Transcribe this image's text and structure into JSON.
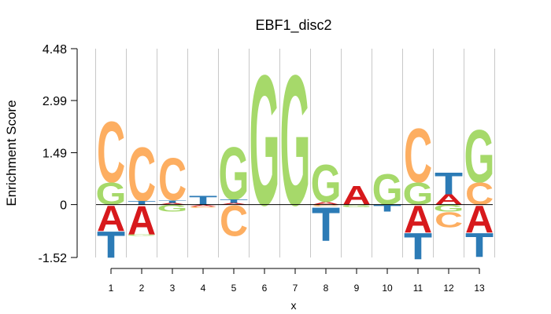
{
  "chart_data": {
    "type": "sequence-logo",
    "title": "EBF1_disc2",
    "xlabel": "x",
    "ylabel": "Enrichment Score",
    "yticks": [
      "4.48",
      "2.99",
      "1.49",
      "0",
      "-1.52"
    ],
    "ylim": [
      -1.52,
      4.48
    ],
    "grid": true,
    "colors": {
      "A": "#d7191c",
      "C": "#fdae61",
      "G": "#a6d96a",
      "T": "#2c7bb6"
    },
    "positions": [
      {
        "x": "1",
        "stack": [
          {
            "base": "C",
            "value": 1.8
          },
          {
            "base": "G",
            "value": 0.65
          }
        ],
        "negative": [
          {
            "base": "A",
            "value": 0.75
          },
          {
            "base": "T",
            "value": 0.78
          }
        ]
      },
      {
        "x": "2",
        "stack": [
          {
            "base": "C",
            "value": 1.6
          },
          {
            "base": "T",
            "value": 0.1
          }
        ],
        "negative": [
          {
            "base": "A",
            "value": 0.85
          },
          {
            "base": "G",
            "value": 0.05
          }
        ]
      },
      {
        "x": "3",
        "stack": [
          {
            "base": "C",
            "value": 1.25
          },
          {
            "base": "T",
            "value": 0.08
          },
          {
            "base": "A",
            "value": 0.05
          }
        ],
        "negative": [
          {
            "base": "G",
            "value": 0.2
          }
        ]
      },
      {
        "x": "4",
        "stack": [
          {
            "base": "T",
            "value": 0.25
          }
        ],
        "negative": [
          {
            "base": "A",
            "value": 0.05
          },
          {
            "base": "C",
            "value": 0.05
          }
        ]
      },
      {
        "x": "5",
        "stack": [
          {
            "base": "G",
            "value": 1.55
          },
          {
            "base": "T",
            "value": 0.1
          },
          {
            "base": "A",
            "value": 0.05
          }
        ],
        "negative": [
          {
            "base": "C",
            "value": 0.9
          }
        ]
      },
      {
        "x": "6",
        "stack": [
          {
            "base": "G",
            "value": 3.85
          }
        ],
        "negative": []
      },
      {
        "x": "7",
        "stack": [
          {
            "base": "G",
            "value": 3.85
          }
        ],
        "negative": []
      },
      {
        "x": "8",
        "stack": [
          {
            "base": "G",
            "value": 1.1
          },
          {
            "base": "A",
            "value": 0.08
          }
        ],
        "negative": [
          {
            "base": "C",
            "value": 0.05
          },
          {
            "base": "T",
            "value": 1.0
          }
        ]
      },
      {
        "x": "9",
        "stack": [
          {
            "base": "A",
            "value": 0.55
          }
        ],
        "negative": [
          {
            "base": "G",
            "value": 0.08
          }
        ]
      },
      {
        "x": "10",
        "stack": [
          {
            "base": "G",
            "value": 0.9
          }
        ],
        "negative": [
          {
            "base": "T",
            "value": 0.2
          }
        ]
      },
      {
        "x": "11",
        "stack": [
          {
            "base": "C",
            "value": 1.6
          },
          {
            "base": "G",
            "value": 0.65
          }
        ],
        "negative": [
          {
            "base": "A",
            "value": 0.8
          },
          {
            "base": "T",
            "value": 0.78
          }
        ]
      },
      {
        "x": "12",
        "stack": [
          {
            "base": "T",
            "value": 0.65
          },
          {
            "base": "A",
            "value": 0.3
          }
        ],
        "negative": [
          {
            "base": "G",
            "value": 0.2
          },
          {
            "base": "C",
            "value": 0.45
          }
        ]
      },
      {
        "x": "13",
        "stack": [
          {
            "base": "G",
            "value": 1.55
          },
          {
            "base": "C",
            "value": 0.65
          }
        ],
        "negative": [
          {
            "base": "A",
            "value": 0.8
          },
          {
            "base": "T",
            "value": 0.7
          }
        ]
      }
    ]
  }
}
